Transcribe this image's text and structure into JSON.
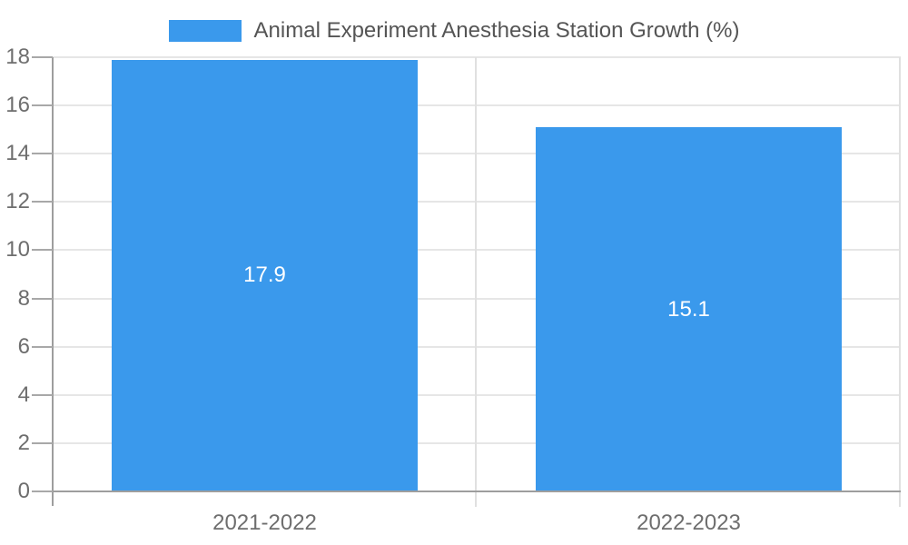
{
  "colors": {
    "bar": "#3a99ec",
    "grid": "#e6e6e6",
    "boundary": "#e0e0e0",
    "axis": "#9e9e9e",
    "tick": "#a8a8a8",
    "axis_label": "#6e6e6e",
    "legend_text": "#555555",
    "value_label": "#ffffff",
    "background": "#ffffff"
  },
  "chart_data": {
    "type": "bar",
    "title": "Animal Experiment Anesthesia Station Growth (%)",
    "categories": [
      "2021-2022",
      "2022-2023"
    ],
    "values": [
      17.9,
      15.1
    ],
    "value_labels": [
      "17.9",
      "15.1"
    ],
    "xlabel": "",
    "ylabel": "",
    "ylim": [
      0,
      18
    ],
    "yticks": [
      0,
      2,
      4,
      6,
      8,
      10,
      12,
      14,
      16,
      18
    ],
    "grid": true,
    "legend_position": "top-center",
    "bar_label_position": "inside-center"
  }
}
